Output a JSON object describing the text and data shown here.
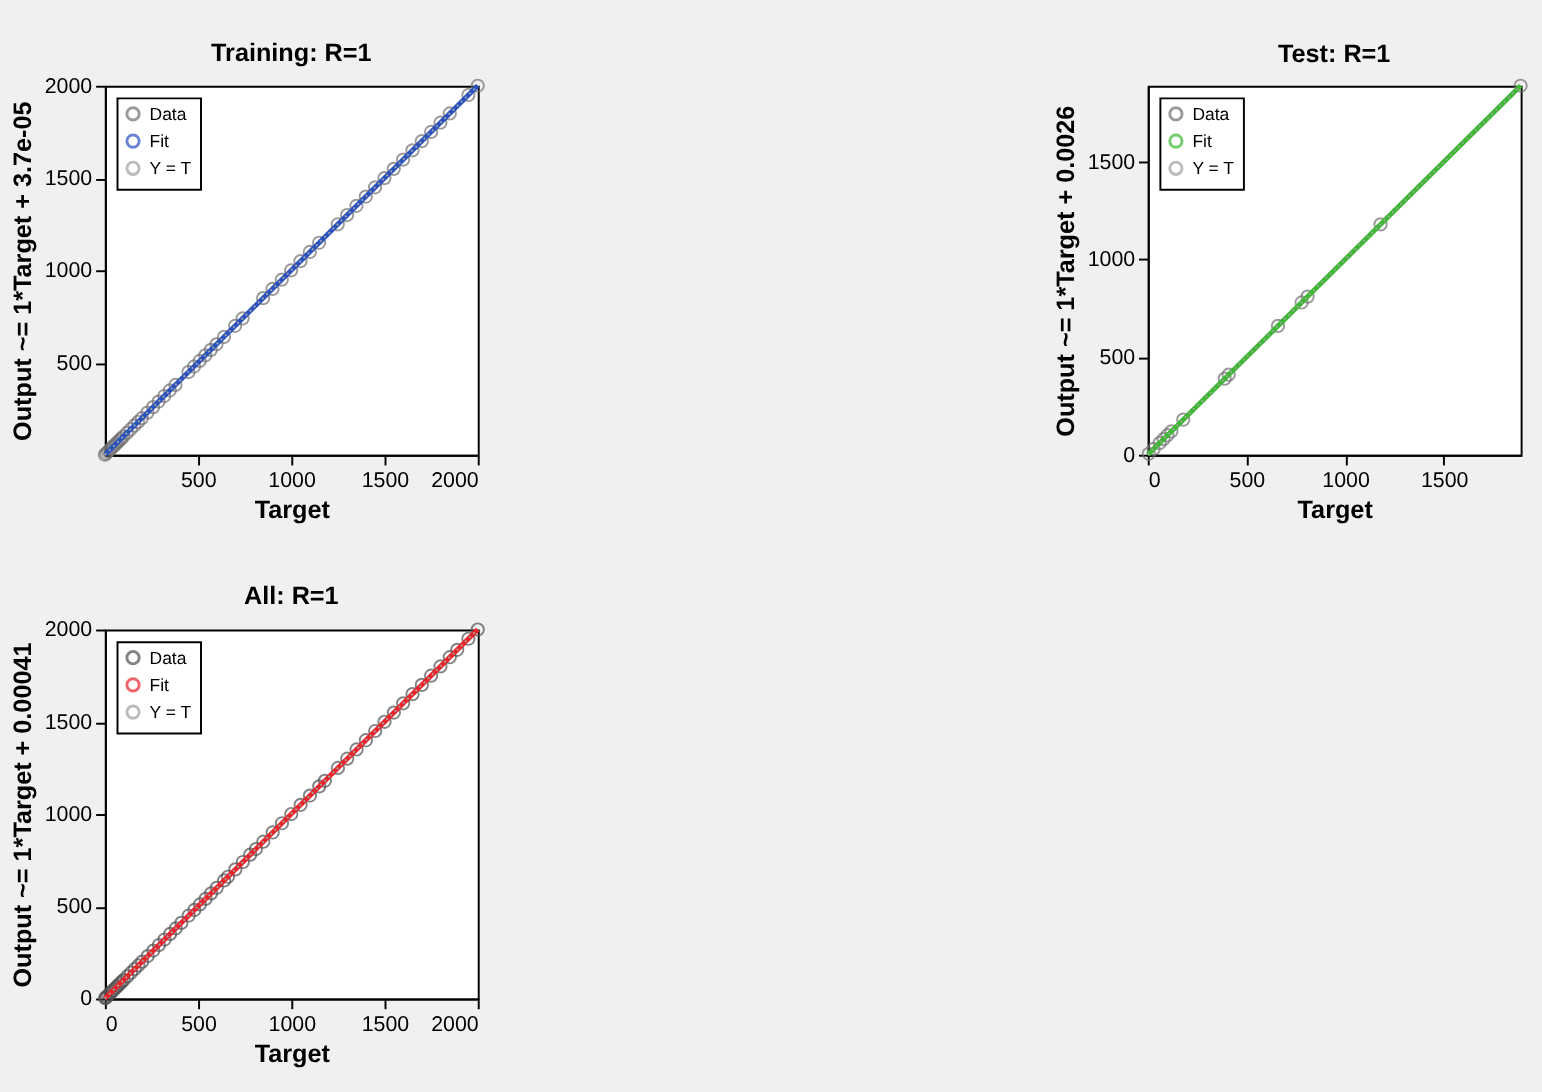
{
  "chart_data": [
    {
      "type": "scatter",
      "title": "Training: R=1",
      "xlabel": "Target",
      "ylabel": "Output ~= 1*Target + 3.7e-05",
      "xlim": [
        2,
        2000
      ],
      "ylim": [
        2,
        2000
      ],
      "xticks": [
        500,
        1000,
        1500,
        2000
      ],
      "yticks": [
        500,
        1000,
        1500,
        2000
      ],
      "grid": false,
      "legend": "top left",
      "series": [
        {
          "name": "Data",
          "type": "scatter",
          "marker": "circle",
          "color": "#707070",
          "x": [
            2,
            10,
            20,
            30,
            40,
            50,
            60,
            70,
            80,
            90,
            100,
            120,
            140,
            160,
            180,
            200,
            230,
            260,
            290,
            320,
            350,
            380,
            450,
            480,
            510,
            540,
            570,
            600,
            640,
            700,
            740,
            850,
            900,
            950,
            1000,
            1050,
            1100,
            1150,
            1250,
            1300,
            1350,
            1400,
            1450,
            1500,
            1550,
            1600,
            1650,
            1700,
            1750,
            1800,
            1850,
            1950,
            2000
          ],
          "values": [
            2,
            10,
            20,
            30,
            40,
            50,
            60,
            70,
            80,
            90,
            100,
            120,
            140,
            160,
            180,
            200,
            230,
            260,
            290,
            320,
            350,
            380,
            450,
            480,
            510,
            540,
            570,
            600,
            640,
            700,
            740,
            850,
            900,
            950,
            1000,
            1050,
            1100,
            1150,
            1250,
            1300,
            1350,
            1400,
            1450,
            1500,
            1550,
            1600,
            1650,
            1700,
            1750,
            1800,
            1850,
            1950,
            2000
          ]
        },
        {
          "name": "Fit",
          "type": "line",
          "line_style": "solid",
          "color": "#2a52be",
          "x": [
            2,
            2000
          ],
          "values": [
            2,
            2000
          ]
        },
        {
          "name": "Y = T",
          "type": "line",
          "line_style": "dotted",
          "color": "#a0a0a0",
          "x": [
            2,
            2000
          ],
          "values": [
            2,
            2000
          ]
        }
      ]
    },
    {
      "type": "scatter",
      "title": "Test: R=1",
      "xlabel": "Target",
      "ylabel": "Output ~= 1*Target + 0.0026",
      "xlim": [
        0,
        1890
      ],
      "ylim": [
        0,
        1890
      ],
      "xticks": [
        0,
        500,
        1000,
        1500
      ],
      "yticks": [
        0,
        500,
        1000,
        1500
      ],
      "grid": false,
      "legend": "top left",
      "series": [
        {
          "name": "Data",
          "type": "scatter",
          "marker": "circle",
          "color": "#707070",
          "x": [
            5,
            30,
            60,
            80,
            100,
            120,
            180,
            390,
            410,
            660,
            780,
            810,
            1180,
            1890
          ],
          "values": [
            5,
            30,
            60,
            80,
            100,
            120,
            180,
            390,
            410,
            660,
            780,
            810,
            1180,
            1890
          ]
        },
        {
          "name": "Fit",
          "type": "line",
          "line_style": "solid",
          "color": "#3cb832",
          "x": [
            0,
            1890
          ],
          "values": [
            0,
            1890
          ]
        },
        {
          "name": "Y = T",
          "type": "line",
          "line_style": "dotted",
          "color": "#a0a0a0",
          "x": [
            0,
            1890
          ],
          "values": [
            0,
            1890
          ]
        }
      ]
    },
    {
      "type": "scatter",
      "title": "All: R=1",
      "xlabel": "Target",
      "ylabel": "Output ~= 1*Target + 0.00041",
      "xlim": [
        0,
        2000
      ],
      "ylim": [
        0,
        2000
      ],
      "xticks": [
        0,
        500,
        1000,
        1500,
        2000
      ],
      "yticks": [
        0,
        500,
        1000,
        1500,
        2000
      ],
      "grid": false,
      "legend": "top left",
      "series": [
        {
          "name": "Data",
          "type": "scatter",
          "marker": "circle",
          "color": "#505050",
          "x": [
            2,
            5,
            10,
            20,
            30,
            40,
            50,
            60,
            70,
            80,
            90,
            100,
            120,
            140,
            160,
            180,
            200,
            230,
            260,
            290,
            320,
            350,
            380,
            410,
            450,
            480,
            510,
            540,
            570,
            600,
            640,
            660,
            700,
            740,
            780,
            810,
            850,
            900,
            950,
            1000,
            1050,
            1100,
            1150,
            1180,
            1250,
            1300,
            1350,
            1400,
            1450,
            1500,
            1550,
            1600,
            1650,
            1700,
            1750,
            1800,
            1850,
            1890,
            1950,
            2000
          ],
          "values": [
            2,
            5,
            10,
            20,
            30,
            40,
            50,
            60,
            70,
            80,
            90,
            100,
            120,
            140,
            160,
            180,
            200,
            230,
            260,
            290,
            320,
            350,
            380,
            410,
            450,
            480,
            510,
            540,
            570,
            600,
            640,
            660,
            700,
            740,
            780,
            810,
            850,
            900,
            950,
            1000,
            1050,
            1100,
            1150,
            1180,
            1250,
            1300,
            1350,
            1400,
            1450,
            1500,
            1550,
            1600,
            1650,
            1700,
            1750,
            1800,
            1850,
            1890,
            1950,
            2000
          ]
        },
        {
          "name": "Fit",
          "type": "line",
          "line_style": "solid",
          "color": "#e8232a",
          "x": [
            0,
            2000
          ],
          "values": [
            0,
            2000
          ]
        },
        {
          "name": "Y = T",
          "type": "line",
          "line_style": "dotted",
          "color": "#a0a0a0",
          "x": [
            0,
            2000
          ],
          "values": [
            0,
            2000
          ]
        }
      ]
    }
  ]
}
